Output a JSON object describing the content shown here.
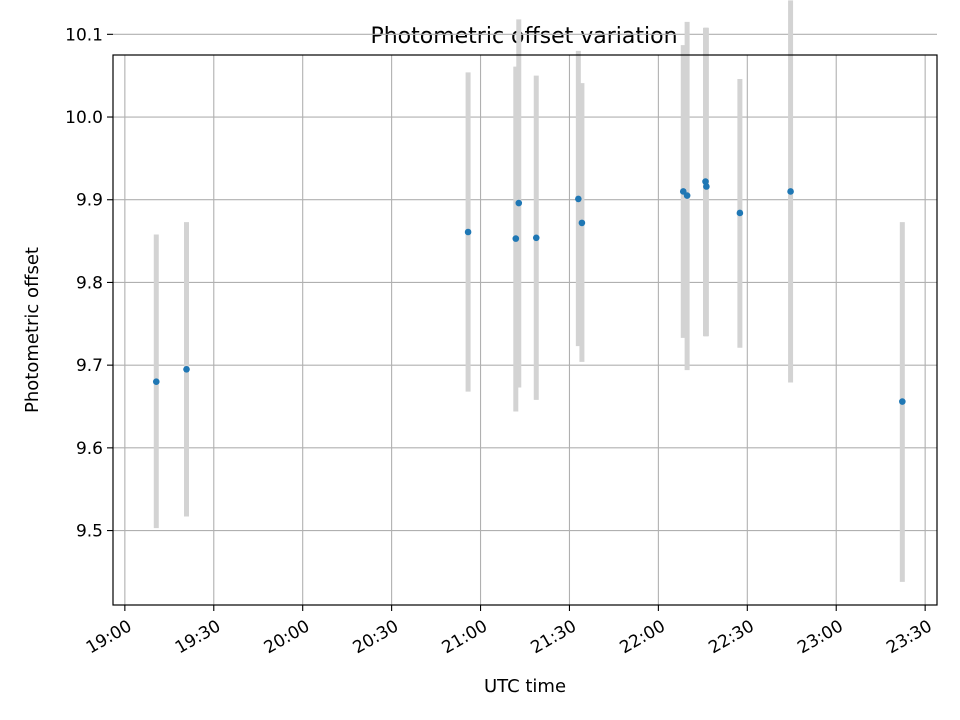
{
  "chart_data": {
    "type": "scatter",
    "title": "Photometric offset variation",
    "xlabel": "UTC time",
    "ylabel": "Photometric offset",
    "xlim_minutes": [
      1136,
      1414
    ],
    "ylim": [
      9.41,
      10.075
    ],
    "x_ticks": [
      {
        "minutes": 1140,
        "label": "19:00"
      },
      {
        "minutes": 1170,
        "label": "19:30"
      },
      {
        "minutes": 1200,
        "label": "20:00"
      },
      {
        "minutes": 1230,
        "label": "20:30"
      },
      {
        "minutes": 1260,
        "label": "21:00"
      },
      {
        "minutes": 1290,
        "label": "21:30"
      },
      {
        "minutes": 1320,
        "label": "22:00"
      },
      {
        "minutes": 1350,
        "label": "22:30"
      },
      {
        "minutes": 1380,
        "label": "23:00"
      },
      {
        "minutes": 1410,
        "label": "23:30"
      }
    ],
    "y_ticks": [
      {
        "value": 9.5,
        "label": "9.5"
      },
      {
        "value": 9.6,
        "label": "9.6"
      },
      {
        "value": 9.7,
        "label": "9.7"
      },
      {
        "value": 9.8,
        "label": "9.8"
      },
      {
        "value": 9.9,
        "label": "9.9"
      },
      {
        "value": 10.0,
        "label": "10.0"
      },
      {
        "value": 10.1,
        "label": "10.1"
      }
    ],
    "grid": true,
    "marker_color": "#1f77b4",
    "errorbar_color": "#d3d3d3",
    "points": [
      {
        "time": "19:10:36",
        "minutes": 1150.6,
        "y": 9.68,
        "lo": 9.503,
        "hi": 9.858
      },
      {
        "time": "19:20:48",
        "minutes": 1160.8,
        "y": 9.695,
        "lo": 9.517,
        "hi": 9.873
      },
      {
        "time": "20:55:48",
        "minutes": 1255.8,
        "y": 9.861,
        "lo": 9.668,
        "hi": 10.054
      },
      {
        "time": "21:11:54",
        "minutes": 1271.9,
        "y": 9.853,
        "lo": 9.644,
        "hi": 10.061
      },
      {
        "time": "21:12:54",
        "minutes": 1272.9,
        "y": 9.896,
        "lo": 9.673,
        "hi": 10.118
      },
      {
        "time": "21:18:48",
        "minutes": 1278.8,
        "y": 9.854,
        "lo": 9.658,
        "hi": 10.05
      },
      {
        "time": "21:33:00",
        "minutes": 1293.0,
        "y": 9.901,
        "lo": 9.723,
        "hi": 10.08
      },
      {
        "time": "21:34:12",
        "minutes": 1294.2,
        "y": 9.872,
        "lo": 9.704,
        "hi": 10.041
      },
      {
        "time": "22:08:24",
        "minutes": 1328.4,
        "y": 9.91,
        "lo": 9.733,
        "hi": 10.087
      },
      {
        "time": "22:09:42",
        "minutes": 1329.7,
        "y": 9.905,
        "lo": 9.694,
        "hi": 10.115
      },
      {
        "time": "22:15:54",
        "minutes": 1335.9,
        "y": 9.922,
        "lo": 9.735,
        "hi": 10.108
      },
      {
        "time": "22:16:12",
        "minutes": 1336.2,
        "y": 9.916,
        "lo": 9.735,
        "hi": 10.108
      },
      {
        "time": "22:27:30",
        "minutes": 1347.5,
        "y": 9.884,
        "lo": 9.721,
        "hi": 10.046
      },
      {
        "time": "22:44:36",
        "minutes": 1364.6,
        "y": 9.91,
        "lo": 9.679,
        "hi": 10.141
      },
      {
        "time": "23:22:18",
        "minutes": 1402.3,
        "y": 9.656,
        "lo": 9.438,
        "hi": 9.873
      }
    ]
  }
}
